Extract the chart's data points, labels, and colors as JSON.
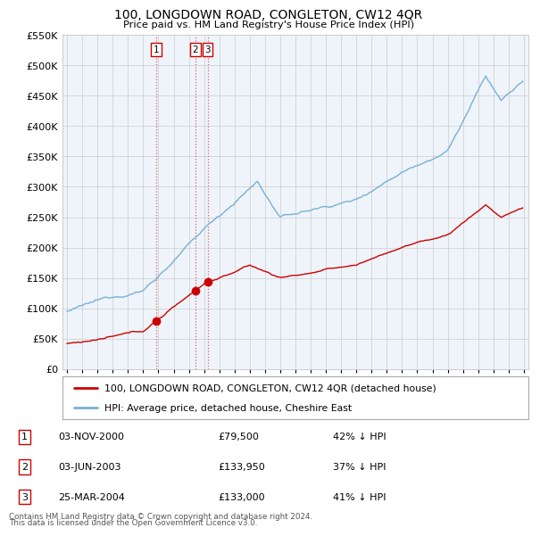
{
  "title": "100, LONGDOWN ROAD, CONGLETON, CW12 4QR",
  "subtitle": "Price paid vs. HM Land Registry's House Price Index (HPI)",
  "red_label": "100, LONGDOWN ROAD, CONGLETON, CW12 4QR (detached house)",
  "blue_label": "HPI: Average price, detached house, Cheshire East",
  "transactions": [
    {
      "id": 1,
      "date_num": 2000.84,
      "price": 79500
    },
    {
      "id": 2,
      "date_num": 2003.42,
      "price": 133950
    },
    {
      "id": 3,
      "date_num": 2004.23,
      "price": 133000
    }
  ],
  "table_rows": [
    {
      "num": 1,
      "date": "03-NOV-2000",
      "price": "£79,500",
      "pct": "42% ↓ HPI"
    },
    {
      "num": 2,
      "date": "03-JUN-2003",
      "price": "£133,950",
      "pct": "37% ↓ HPI"
    },
    {
      "num": 3,
      "date": "25-MAR-2004",
      "price": "£133,000",
      "pct": "41% ↓ HPI"
    }
  ],
  "footnote1": "Contains HM Land Registry data © Crown copyright and database right 2024.",
  "footnote2": "This data is licensed under the Open Government Licence v3.0.",
  "ylim": [
    0,
    550000
  ],
  "xlim": [
    1994.7,
    2025.3
  ],
  "yticks": [
    0,
    50000,
    100000,
    150000,
    200000,
    250000,
    300000,
    350000,
    400000,
    450000,
    500000,
    550000
  ],
  "red_color": "#cc0000",
  "blue_color": "#7ab0d4",
  "vline_color": "#e06060",
  "grid_color": "#cccccc",
  "bg_color": "#ffffff",
  "chart_bg": "#eef4fa",
  "box_color": "#cc0000",
  "legend_border": "#aaaaaa",
  "footnote_color": "#555555"
}
